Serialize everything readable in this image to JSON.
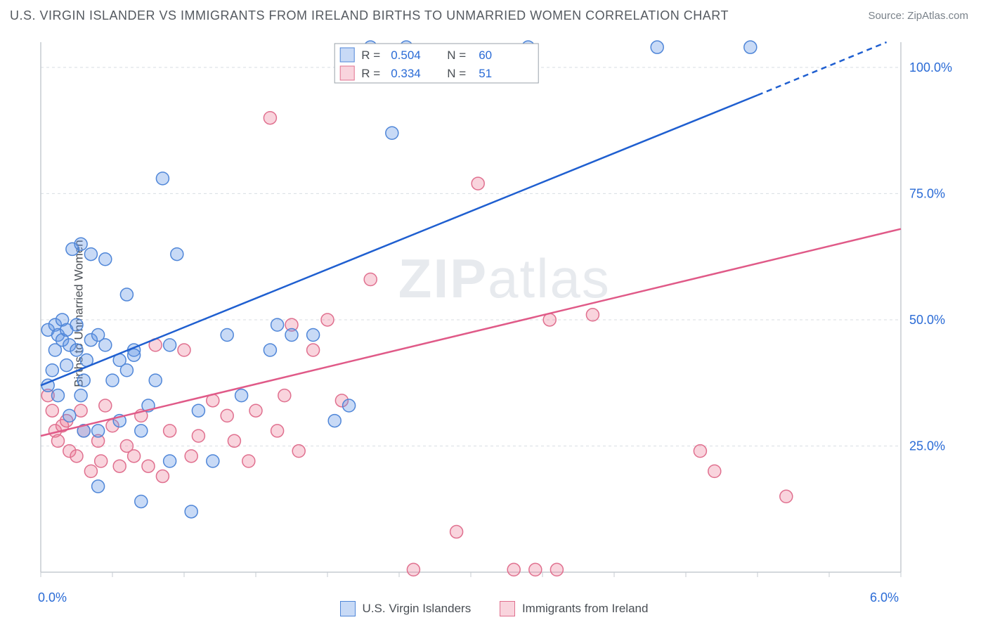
{
  "header": {
    "title": "U.S. VIRGIN ISLANDER VS IMMIGRANTS FROM IRELAND BIRTHS TO UNMARRIED WOMEN CORRELATION CHART",
    "source": "Source: ZipAtlas.com"
  },
  "y_axis_label": "Births to Unmarried Women",
  "watermark": {
    "bold": "ZIP",
    "rest": "atlas"
  },
  "chart": {
    "type": "scatter",
    "xlim": [
      0,
      6
    ],
    "ylim": [
      0,
      105
    ],
    "x_ticks_minor": [
      0,
      0.5,
      1,
      1.5,
      2,
      2.5,
      3,
      3.5,
      4,
      4.5,
      5,
      5.5,
      6
    ],
    "x_labels": [
      {
        "v": 0.0,
        "t": "0.0%"
      },
      {
        "v": 6.0,
        "t": "6.0%"
      }
    ],
    "y_gridlines": [
      25,
      50,
      75,
      100
    ],
    "y_labels": [
      {
        "v": 25,
        "t": "25.0%"
      },
      {
        "v": 50,
        "t": "50.0%"
      },
      {
        "v": 75,
        "t": "75.0%"
      },
      {
        "v": 100,
        "t": "100.0%"
      }
    ],
    "grid_color": "#d8dde2",
    "axis_color": "#c5cbd1",
    "background": "#ffffff",
    "marker_radius": 9,
    "marker_stroke_width": 1.5,
    "trend_line_width": 2.5,
    "series": [
      {
        "id": "usvi",
        "name": "U.S. Virgin Islanders",
        "fill": "rgba(96,150,230,0.35)",
        "stroke": "#4f86d8",
        "trend_color": "#1f5fd0",
        "trend": {
          "x1": 0,
          "y1": 37,
          "x2": 5.9,
          "y2": 105,
          "dash_x": 5.0,
          "dash_y": 94.5
        },
        "R": "0.504",
        "N": "60",
        "points": [
          [
            0.05,
            37
          ],
          [
            0.05,
            48
          ],
          [
            0.08,
            40
          ],
          [
            0.1,
            44
          ],
          [
            0.1,
            49
          ],
          [
            0.12,
            35
          ],
          [
            0.12,
            47
          ],
          [
            0.15,
            46
          ],
          [
            0.15,
            50
          ],
          [
            0.18,
            41
          ],
          [
            0.18,
            48
          ],
          [
            0.2,
            31
          ],
          [
            0.2,
            45
          ],
          [
            0.22,
            64
          ],
          [
            0.25,
            44
          ],
          [
            0.25,
            49
          ],
          [
            0.28,
            35
          ],
          [
            0.28,
            65
          ],
          [
            0.3,
            28
          ],
          [
            0.3,
            38
          ],
          [
            0.32,
            42
          ],
          [
            0.35,
            46
          ],
          [
            0.35,
            63
          ],
          [
            0.4,
            17
          ],
          [
            0.4,
            28
          ],
          [
            0.4,
            47
          ],
          [
            0.45,
            62
          ],
          [
            0.45,
            45
          ],
          [
            0.5,
            38
          ],
          [
            0.55,
            30
          ],
          [
            0.55,
            42
          ],
          [
            0.6,
            55
          ],
          [
            0.6,
            40
          ],
          [
            0.65,
            44
          ],
          [
            0.65,
            43
          ],
          [
            0.7,
            28
          ],
          [
            0.7,
            14
          ],
          [
            0.75,
            33
          ],
          [
            0.8,
            38
          ],
          [
            0.85,
            78
          ],
          [
            0.9,
            45
          ],
          [
            0.9,
            22
          ],
          [
            0.95,
            63
          ],
          [
            1.05,
            12
          ],
          [
            1.1,
            32
          ],
          [
            1.2,
            22
          ],
          [
            1.3,
            47
          ],
          [
            1.4,
            35
          ],
          [
            1.6,
            44
          ],
          [
            1.65,
            49
          ],
          [
            1.75,
            47
          ],
          [
            1.9,
            47
          ],
          [
            2.05,
            30
          ],
          [
            2.15,
            33
          ],
          [
            2.45,
            87
          ],
          [
            2.3,
            104
          ],
          [
            2.55,
            104
          ],
          [
            3.4,
            104
          ],
          [
            4.3,
            104
          ],
          [
            4.95,
            104
          ]
        ]
      },
      {
        "id": "ireland",
        "name": "Immigrants from Ireland",
        "fill": "rgba(235,120,150,0.32)",
        "stroke": "#e0708f",
        "trend_color": "#e05a88",
        "trend": {
          "x1": 0,
          "y1": 27,
          "x2": 6.0,
          "y2": 68
        },
        "R": "0.334",
        "N": "51",
        "points": [
          [
            0.05,
            35
          ],
          [
            0.08,
            32
          ],
          [
            0.1,
            28
          ],
          [
            0.12,
            26
          ],
          [
            0.15,
            29
          ],
          [
            0.18,
            30
          ],
          [
            0.2,
            24
          ],
          [
            0.25,
            23
          ],
          [
            0.28,
            32
          ],
          [
            0.3,
            28
          ],
          [
            0.35,
            20
          ],
          [
            0.4,
            26
          ],
          [
            0.42,
            22
          ],
          [
            0.45,
            33
          ],
          [
            0.5,
            29
          ],
          [
            0.55,
            21
          ],
          [
            0.6,
            25
          ],
          [
            0.65,
            23
          ],
          [
            0.7,
            31
          ],
          [
            0.75,
            21
          ],
          [
            0.8,
            45
          ],
          [
            0.85,
            19
          ],
          [
            0.9,
            28
          ],
          [
            1.0,
            44
          ],
          [
            1.05,
            23
          ],
          [
            1.1,
            27
          ],
          [
            1.2,
            34
          ],
          [
            1.3,
            31
          ],
          [
            1.35,
            26
          ],
          [
            1.45,
            22
          ],
          [
            1.5,
            32
          ],
          [
            1.6,
            90
          ],
          [
            1.65,
            28
          ],
          [
            1.7,
            35
          ],
          [
            1.75,
            49
          ],
          [
            1.8,
            24
          ],
          [
            1.9,
            44
          ],
          [
            2.0,
            50
          ],
          [
            2.1,
            34
          ],
          [
            2.3,
            58
          ],
          [
            2.6,
            0.5
          ],
          [
            3.05,
            77
          ],
          [
            3.3,
            0.5
          ],
          [
            3.45,
            0.5
          ],
          [
            3.55,
            50
          ],
          [
            3.6,
            0.5
          ],
          [
            3.85,
            51
          ],
          [
            4.6,
            24
          ],
          [
            4.7,
            20
          ],
          [
            5.2,
            15
          ],
          [
            2.9,
            8
          ]
        ]
      }
    ],
    "legend_box": {
      "border": "#9aa2aa",
      "bg": "#ffffff",
      "text_color_key": "#4a4f55",
      "text_color_val": "#2a6bd6",
      "font_size": 17
    }
  },
  "bottom_legend": {
    "items": [
      {
        "name": "U.S. Virgin Islanders",
        "fill": "rgba(96,150,230,0.35)",
        "stroke": "#4f86d8"
      },
      {
        "name": "Immigrants from Ireland",
        "fill": "rgba(235,120,150,0.32)",
        "stroke": "#e0708f"
      }
    ]
  }
}
